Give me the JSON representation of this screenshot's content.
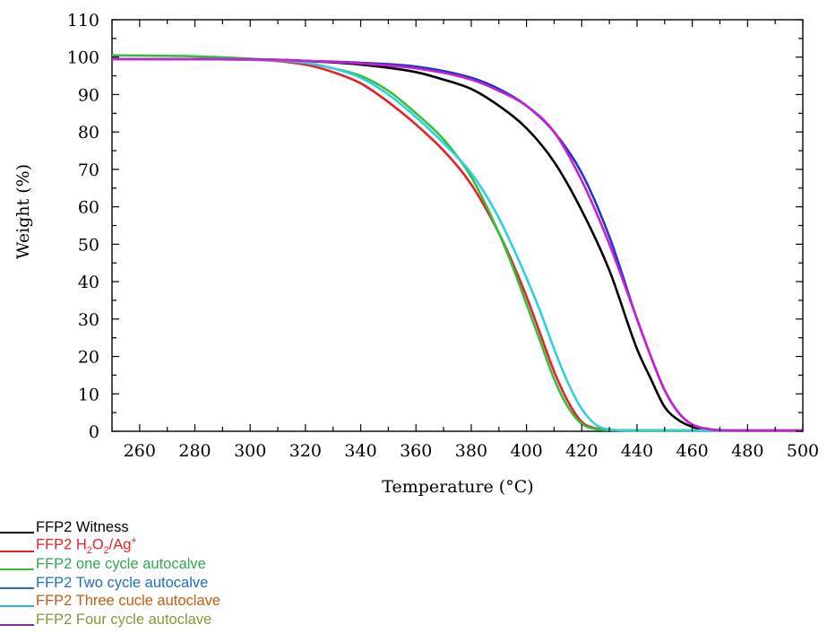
{
  "chart_data": {
    "type": "line",
    "xlabel": "Temperature (°C)",
    "ylabel": "Weight (%)",
    "xlim": [
      250,
      500
    ],
    "ylim": [
      0,
      110
    ],
    "x_ticks": [
      260,
      280,
      300,
      320,
      340,
      360,
      380,
      400,
      420,
      440,
      460,
      480,
      500
    ],
    "y_ticks": [
      0,
      10,
      20,
      30,
      40,
      50,
      60,
      70,
      80,
      90,
      100,
      110
    ],
    "grid": false,
    "legend_position": "bottom-left",
    "series": [
      {
        "name": "FFP2 Witness",
        "color": "#000000",
        "x": [
          250,
          300,
          320,
          340,
          360,
          370,
          380,
          390,
          400,
          410,
          420,
          430,
          440,
          445,
          450,
          455,
          460,
          465,
          470,
          480,
          500
        ],
        "y": [
          99.5,
          99.4,
          99,
          98,
          96,
          94,
          91.5,
          87,
          81,
          72,
          59,
          43,
          22,
          14,
          6.5,
          3,
          1.2,
          0.5,
          0.3,
          0.2,
          0.2
        ]
      },
      {
        "name": "FFP2 H2O2/Ag+",
        "color": "#e8202a",
        "x": [
          250,
          300,
          320,
          330,
          340,
          350,
          360,
          370,
          380,
          390,
          395,
          400,
          405,
          410,
          415,
          420,
          425,
          430,
          440,
          500
        ],
        "y": [
          99.5,
          99.3,
          98,
          96,
          93,
          88,
          82,
          75,
          66,
          53,
          45,
          36,
          26,
          16,
          8,
          2.5,
          0.8,
          0.3,
          0.2,
          0.2
        ]
      },
      {
        "name": "FFP2 one cycle autocalve",
        "color": "#2fc13a",
        "x": [
          250,
          280,
          300,
          320,
          330,
          340,
          350,
          360,
          370,
          380,
          390,
          395,
          400,
          405,
          410,
          415,
          420,
          425,
          430,
          500
        ],
        "y": [
          100.5,
          100.2,
          99.6,
          98.5,
          97,
          95,
          91,
          85,
          78,
          68,
          53,
          44,
          34,
          24,
          14,
          6.5,
          2,
          0.6,
          0.3,
          0.2
        ]
      },
      {
        "name": "FFP2 Two cycle autocalve",
        "color": "#1f37c8",
        "x": [
          250,
          300,
          320,
          340,
          360,
          380,
          390,
          400,
          410,
          420,
          430,
          440,
          445,
          450,
          455,
          460,
          465,
          470,
          480,
          500
        ],
        "y": [
          99.5,
          99.4,
          99,
          98.5,
          97.5,
          94.5,
          91.5,
          87,
          80,
          69,
          52,
          30,
          20,
          11,
          5,
          1.8,
          0.7,
          0.3,
          0.2,
          0.2
        ]
      },
      {
        "name": "FFP2 Three cucle autoclave",
        "color": "#2fd0e0",
        "x": [
          250,
          300,
          320,
          330,
          340,
          350,
          360,
          370,
          380,
          390,
          400,
          405,
          410,
          415,
          420,
          425,
          430,
          440,
          500
        ],
        "y": [
          99.5,
          99.3,
          98.5,
          97,
          94.5,
          90,
          84,
          77,
          69,
          57,
          41,
          32,
          22,
          13,
          6,
          1.8,
          0.5,
          0.2,
          0.2
        ]
      },
      {
        "name": "FFP2 Four cycle autoclave",
        "color": "#c71fd1",
        "x": [
          250,
          300,
          320,
          340,
          360,
          380,
          390,
          400,
          410,
          420,
          430,
          440,
          445,
          450,
          455,
          460,
          465,
          470,
          480,
          500
        ],
        "y": [
          99.5,
          99.4,
          99,
          98.3,
          97,
          94,
          91,
          87,
          80,
          67,
          50,
          30,
          20,
          11,
          5,
          1.8,
          0.7,
          0.3,
          0.2,
          0.2
        ]
      }
    ]
  },
  "legend": {
    "items": [
      {
        "label": "FFP2 Witness",
        "swatch_color": "#000000",
        "text_color": "#000000"
      },
      {
        "label_parts": [
          "FFP2 H",
          "2",
          "O",
          "2",
          "/Ag",
          "+"
        ],
        "swatch_color": "#e8202a",
        "text_color": "#e8202a"
      },
      {
        "label": "FFP2 one cycle autocalve",
        "swatch_color": "#2fc13a",
        "text_color": "#2fa84f"
      },
      {
        "label": "FFP2 Two cycle autocalve",
        "swatch_color": "#1f6fc0",
        "text_color": "#1f6fc0"
      },
      {
        "label": "FFP2 Three cucle autoclave",
        "swatch_color": "#2fb3d9",
        "text_color": "#c65a12"
      },
      {
        "label": "FFP2 Four cycle autoclave",
        "swatch_color": "#7a2f9a",
        "text_color": "#8a9438"
      }
    ]
  }
}
